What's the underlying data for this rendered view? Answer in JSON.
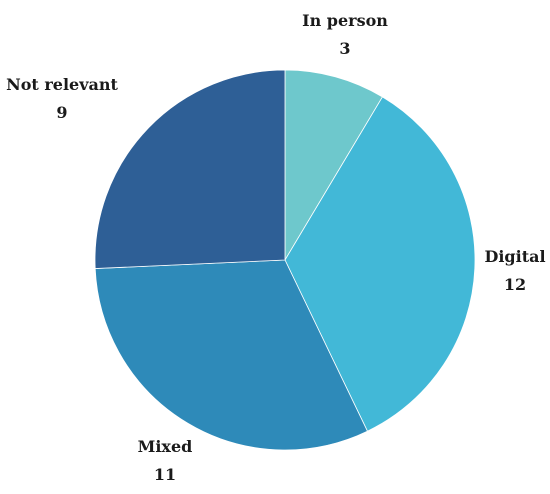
{
  "chart_data": {
    "type": "pie",
    "title": "",
    "start": "top",
    "direction": "clockwise",
    "slices": [
      {
        "label": "In person",
        "value": 3,
        "color": "#6ec8cc"
      },
      {
        "label": "Digital",
        "value": 12,
        "color": "#42b8d7"
      },
      {
        "label": "Mixed",
        "value": 11,
        "color": "#2e8ab9"
      },
      {
        "label": "Not relevant",
        "value": 9,
        "color": "#2e5f96"
      }
    ]
  }
}
